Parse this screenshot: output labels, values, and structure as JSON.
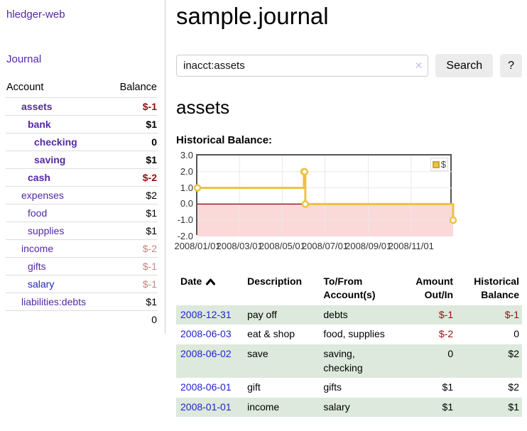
{
  "app": {
    "title": "hledger-web",
    "nav_journal": "Journal"
  },
  "sidebar": {
    "col_account": "Account",
    "col_balance": "Balance",
    "accounts": [
      {
        "name": "assets",
        "depth": 1,
        "balance": "$-1",
        "bold": true,
        "neg": "strong"
      },
      {
        "name": "bank",
        "depth": 2,
        "balance": "$1",
        "bold": true,
        "neg": "none"
      },
      {
        "name": "checking",
        "depth": 3,
        "balance": "0",
        "bold": true,
        "neg": "none"
      },
      {
        "name": "saving",
        "depth": 3,
        "balance": "$1",
        "bold": true,
        "neg": "none"
      },
      {
        "name": "cash",
        "depth": 2,
        "balance": "$-2",
        "bold": true,
        "neg": "strong"
      },
      {
        "name": "expenses",
        "depth": 1,
        "balance": "$2",
        "bold": false,
        "neg": "none"
      },
      {
        "name": "food",
        "depth": 2,
        "balance": "$1",
        "bold": false,
        "neg": "none"
      },
      {
        "name": "supplies",
        "depth": 2,
        "balance": "$1",
        "bold": false,
        "neg": "none"
      },
      {
        "name": "income",
        "depth": 1,
        "balance": "$-2",
        "bold": false,
        "neg": "soft"
      },
      {
        "name": "gifts",
        "depth": 2,
        "balance": "$-1",
        "bold": false,
        "neg": "soft"
      },
      {
        "name": "salary",
        "depth": 2,
        "balance": "$-1",
        "bold": false,
        "neg": "soft",
        "link_color": "blue"
      },
      {
        "name": "liabilities:debts",
        "depth": 1,
        "balance": "$1",
        "bold": false,
        "neg": "none"
      }
    ],
    "total": "0"
  },
  "header": {
    "title": "sample.journal"
  },
  "search": {
    "value": "inacct:assets",
    "clear_icon": "✕",
    "button": "Search",
    "help_button": "?"
  },
  "account_page": {
    "title": "assets",
    "chart_label": "Historical Balance:"
  },
  "chart_data": {
    "type": "line",
    "step": true,
    "title": "Historical Balance",
    "xlabel": "",
    "ylabel": "",
    "x_start": "2008-01-01",
    "x_end": "2008-12-31",
    "points": [
      [
        "2008-01-01",
        1
      ],
      [
        "2008-06-01",
        2
      ],
      [
        "2008-06-02",
        2
      ],
      [
        "2008-06-03",
        0
      ],
      [
        "2008-12-31",
        -1
      ]
    ],
    "ylim": [
      -2,
      3
    ],
    "yticks": [
      3.0,
      2.0,
      1.0,
      0.0,
      -1.0,
      -2.0
    ],
    "ytick_labels": [
      "3.0",
      "2.0",
      "1.0",
      "0.0",
      "-1.0",
      "-2.0"
    ],
    "xticks": [
      "2008/01/01",
      "2008/03/01",
      "2008/05/01",
      "2008/07/01",
      "2008/09/01",
      "2008/11/01"
    ],
    "grid": true,
    "legend_position": "top-right",
    "legend": [
      {
        "label": "$",
        "color": "#E9C248"
      }
    ],
    "colors": {
      "line": "#EDC240",
      "point_fill": "#FFFFFF",
      "negative_region": "#FBD9D9",
      "zero_line": "#8B0000",
      "grid": "#E8E8E8",
      "border": "#545454"
    }
  },
  "register": {
    "columns": {
      "date": [
        "Date"
      ],
      "description": [
        "Description"
      ],
      "to_from": [
        "To/From",
        "Account(s)"
      ],
      "amount": [
        "Amount",
        "Out/In"
      ],
      "balance": [
        "Historical",
        "Balance"
      ]
    },
    "rows": [
      {
        "date": "2008-12-31",
        "description": "pay off",
        "to_from": "debts",
        "amount": "$-1",
        "amount_neg": true,
        "balance": "$-1",
        "balance_neg": true
      },
      {
        "date": "2008-06-03",
        "description": "eat & shop",
        "to_from": "food, supplies",
        "amount": "$-2",
        "amount_neg": true,
        "balance": "0",
        "balance_neg": false
      },
      {
        "date": "2008-06-02",
        "description": "save",
        "to_from": "saving, checking",
        "amount": "0",
        "amount_neg": false,
        "balance": "$2",
        "balance_neg": false
      },
      {
        "date": "2008-06-01",
        "description": "gift",
        "to_from": "gifts",
        "amount": "$1",
        "amount_neg": false,
        "balance": "$2",
        "balance_neg": false
      },
      {
        "date": "2008-01-01",
        "description": "income",
        "to_from": "salary",
        "amount": "$1",
        "amount_neg": false,
        "balance": "$1",
        "balance_neg": false
      }
    ]
  }
}
